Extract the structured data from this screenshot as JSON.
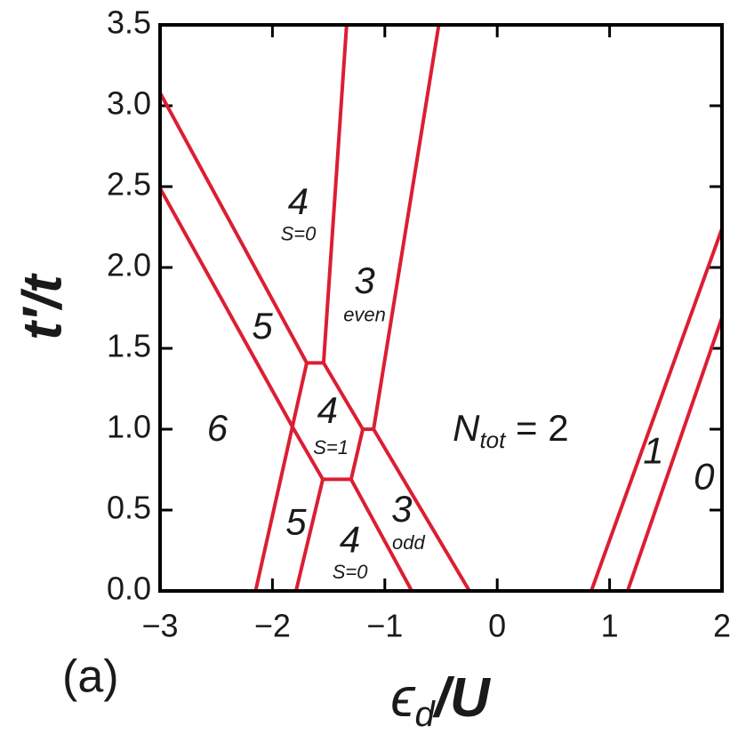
{
  "chart_data": {
    "type": "line",
    "color": "#dc1e32",
    "panel_label": "(a)",
    "y_label": "t′/t",
    "x_label": {
      "main": "ϵ",
      "sub": "d",
      "after": "/U"
    },
    "xlim": [
      -3,
      2
    ],
    "ylim": [
      0,
      3.5
    ],
    "xticks": [
      {
        "value": -3,
        "label": "−3"
      },
      {
        "value": -2,
        "label": "−2"
      },
      {
        "value": -1,
        "label": "−1"
      },
      0,
      1,
      2
    ],
    "yticks": [
      {
        "value": 0,
        "label": "0.0"
      },
      {
        "value": 0.5,
        "label": "0.5"
      },
      {
        "value": 1,
        "label": "1.0"
      },
      {
        "value": 1.5,
        "label": "1.5"
      },
      {
        "value": 2,
        "label": "2.0"
      },
      {
        "value": 2.5,
        "label": "2.5"
      },
      {
        "value": 3,
        "label": "3.0"
      },
      {
        "value": 3.5,
        "label": "3.5"
      }
    ],
    "series": [
      {
        "x": [
          -3,
          -1.695,
          -1.545,
          -1.196,
          -1.1,
          -0.247
        ],
        "values": [
          3.08,
          1.41,
          1.41,
          1.0,
          1.0,
          0
        ]
      },
      {
        "x": [
          -3,
          -1.81,
          -1.552,
          -1.3,
          -0.76
        ],
        "values": [
          2.49,
          1.0,
          0.69,
          0.69,
          0
        ]
      },
      {
        "x": [
          -1.34,
          -1.545
        ],
        "values": [
          3.5,
          1.41
        ]
      },
      {
        "x": [
          -0.52,
          -1.1
        ],
        "values": [
          3.5,
          1.0
        ]
      },
      {
        "x": [
          -2.15,
          -1.695
        ],
        "values": [
          0,
          1.41
        ]
      },
      {
        "x": [
          -1.79,
          -1.552
        ],
        "values": [
          0,
          0.69
        ]
      },
      {
        "x": [
          -1.3,
          -1.196
        ],
        "values": [
          0.69,
          1.0
        ]
      },
      {
        "x": [
          0.837,
          2
        ],
        "values": [
          0,
          2.24
        ]
      },
      {
        "x": [
          1.16,
          2
        ],
        "values": [
          0,
          1.69
        ]
      }
    ],
    "annotations": [
      {
        "text": "4",
        "x": -1.77,
        "y": 2.39
      },
      {
        "text": "S=0",
        "x": -1.77,
        "y": 2.2,
        "small": true
      },
      {
        "text": "3",
        "x": -1.18,
        "y": 1.9
      },
      {
        "text": "even",
        "x": -1.18,
        "y": 1.7,
        "small": true
      },
      {
        "text": "5",
        "x": -2.09,
        "y": 1.62
      },
      {
        "text": "6",
        "x": -2.49,
        "y": 0.99
      },
      {
        "text": "4",
        "x": -1.51,
        "y": 1.1
      },
      {
        "text": "S=1",
        "x": -1.48,
        "y": 0.88,
        "small": true
      },
      {
        "text": "5",
        "x": -1.79,
        "y": 0.41
      },
      {
        "text": "4",
        "x": -1.31,
        "y": 0.3
      },
      {
        "text": "S=0",
        "x": -1.31,
        "y": 0.11,
        "small": true
      },
      {
        "text": "3",
        "x": -0.85,
        "y": 0.49
      },
      {
        "text": "odd",
        "x": -0.79,
        "y": 0.29,
        "small": true
      },
      {
        "text": "N",
        "sub": "tot",
        "after": " = 2",
        "x": 0.12,
        "y": 0.99
      },
      {
        "text": "1",
        "x": 1.39,
        "y": 0.85
      },
      {
        "text": "0",
        "x": 1.84,
        "y": 0.69
      }
    ]
  }
}
